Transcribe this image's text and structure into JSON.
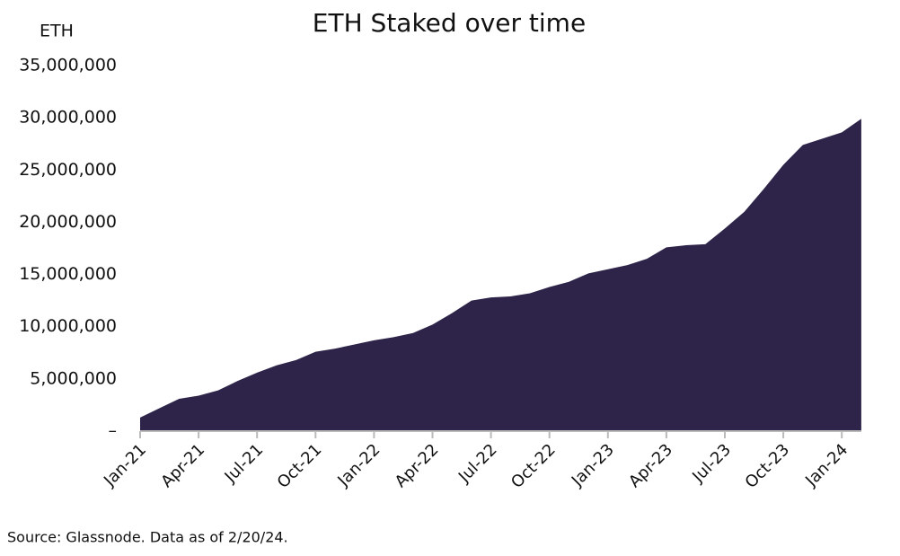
{
  "chart_data": {
    "type": "area",
    "title": "ETH Staked over time",
    "y_label": "ETH",
    "source": "Source: Glassnode. Data as of 2/20/24.",
    "categories": [
      "Jan-21",
      null,
      null,
      "Apr-21",
      null,
      null,
      "Jul-21",
      null,
      null,
      "Oct-21",
      null,
      null,
      "Jan-22",
      null,
      null,
      "Apr-22",
      null,
      null,
      "Jul-22",
      null,
      null,
      "Oct-22",
      null,
      null,
      "Jan-23",
      null,
      null,
      "Apr-23",
      null,
      null,
      "Jul-23",
      null,
      null,
      "Oct-23",
      null,
      null,
      "Jan-24",
      null
    ],
    "values": [
      1300000,
      2200000,
      3100000,
      3400000,
      3900000,
      4800000,
      5600000,
      6300000,
      6800000,
      7600000,
      7900000,
      8300000,
      8700000,
      9000000,
      9400000,
      10200000,
      11300000,
      12500000,
      12800000,
      12900000,
      13200000,
      13800000,
      14300000,
      15100000,
      15500000,
      15900000,
      16500000,
      17600000,
      17800000,
      17900000,
      19400000,
      21000000,
      23200000,
      25500000,
      27400000,
      28000000,
      28600000,
      29900000
    ],
    "color": "#2e2449",
    "ylim": [
      0,
      35000000
    ],
    "yticks": [
      {
        "value": 0,
        "label": "–"
      },
      {
        "value": 5000000,
        "label": "5,000,000"
      },
      {
        "value": 10000000,
        "label": "10,000,000"
      },
      {
        "value": 15000000,
        "label": "15,000,000"
      },
      {
        "value": 20000000,
        "label": "20,000,000"
      },
      {
        "value": 25000000,
        "label": "25,000,000"
      },
      {
        "value": 30000000,
        "label": "30,000,000"
      },
      {
        "value": 35000000,
        "label": "35,000,000"
      }
    ]
  }
}
